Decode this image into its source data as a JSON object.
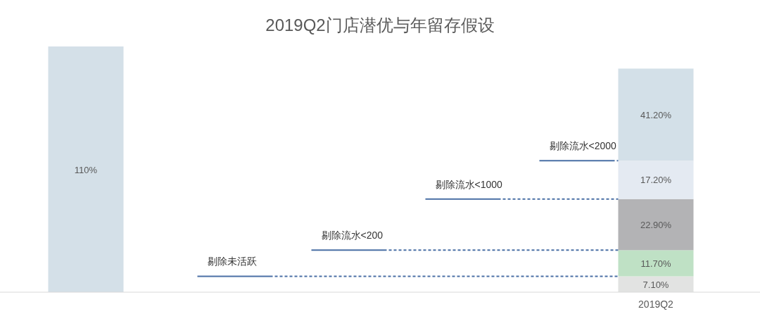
{
  "chart_data": {
    "type": "bar",
    "stacked": true,
    "title": "2019Q2门店潜优与年留存假设",
    "categories": [
      null,
      "2019Q2"
    ],
    "ylim": [
      0,
      110
    ],
    "tick_labels": "x",
    "series": [
      {
        "values": [
          110,
          7.1
        ],
        "colors": [
          "#d4e0e8",
          "#e2e3e2"
        ],
        "value_labels": [
          "110%",
          "7.10%"
        ]
      },
      {
        "values": [
          null,
          11.7
        ],
        "color": "#bfe1c5",
        "value_labels": [
          null,
          "11.70%"
        ]
      },
      {
        "values": [
          null,
          22.9
        ],
        "color": "#b3b3b5",
        "value_labels": [
          null,
          "22.90%"
        ]
      },
      {
        "values": [
          null,
          17.2
        ],
        "color": "#e4eaf2",
        "value_labels": [
          null,
          "17.20%"
        ]
      },
      {
        "values": [
          null,
          41.2
        ],
        "color": "#d3e0e8",
        "value_labels": [
          null,
          "41.20%"
        ]
      }
    ],
    "ref_lines": [
      {
        "axis": "y",
        "value": 7.1,
        "label": "剔除未活跃",
        "color": "#4a6fa5"
      },
      {
        "axis": "y",
        "value": 18.8,
        "label": "剔除流水<200",
        "color": "#4a6fa5"
      },
      {
        "axis": "y",
        "value": 41.7,
        "label": "剔除流水<1000",
        "color": "#4a6fa5"
      },
      {
        "axis": "y",
        "value": 58.9,
        "label": "剔除流水<2000",
        "color": "#4a6fa5"
      }
    ]
  }
}
